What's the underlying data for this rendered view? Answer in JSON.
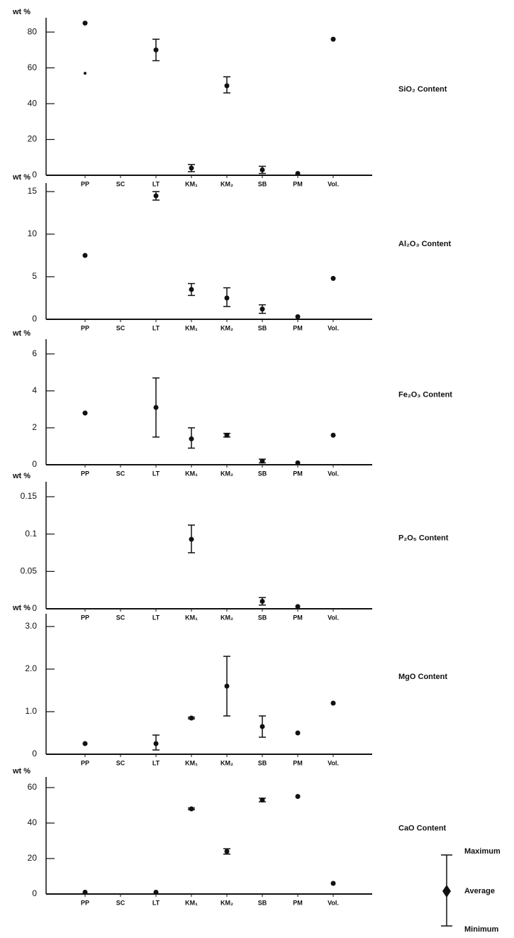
{
  "chart_data": [
    {
      "type": "range",
      "ylabel": "wt %",
      "title": "SiO₂ Content",
      "categories": [
        "PP",
        "SC",
        "LT",
        "KM₁",
        "KM₂",
        "SB",
        "PM",
        "Vol."
      ],
      "values": [
        85,
        null,
        70,
        4,
        50,
        3,
        1,
        76
      ],
      "min": [
        57,
        null,
        64,
        2,
        46,
        1,
        null,
        null
      ],
      "max": [
        null,
        null,
        76,
        6,
        55,
        5,
        null,
        null
      ],
      "ylim": [
        0,
        88
      ],
      "yticks": [
        0,
        20,
        40,
        60,
        80
      ],
      "color": "#111111"
    },
    {
      "type": "range",
      "ylabel": "wt %",
      "title": "Al₂O₃ Content",
      "categories": [
        "PP",
        "SC",
        "LT",
        "KM₁",
        "KM₂",
        "SB",
        "PM",
        "Vol."
      ],
      "values": [
        7.5,
        null,
        14.5,
        3.5,
        2.5,
        1.2,
        0.3,
        4.8
      ],
      "min": [
        null,
        null,
        14,
        2.8,
        1.5,
        0.7,
        null,
        null
      ],
      "max": [
        null,
        null,
        15,
        4.2,
        3.7,
        1.7,
        null,
        null
      ],
      "ylim": [
        0,
        16
      ],
      "yticks": [
        0,
        5,
        10,
        15
      ],
      "color": "#111111"
    },
    {
      "type": "range",
      "ylabel": "wt %",
      "title": "Fe₂O₃ Content",
      "categories": [
        "PP",
        "SC",
        "LT",
        "KM₁",
        "KM₂",
        "SB",
        "PM",
        "Vol."
      ],
      "values": [
        2.8,
        null,
        3.1,
        1.4,
        1.6,
        0.2,
        0.1,
        1.6
      ],
      "min": [
        null,
        null,
        1.5,
        0.9,
        1.5,
        0.1,
        null,
        null
      ],
      "max": [
        null,
        null,
        4.7,
        2.0,
        1.7,
        0.3,
        null,
        null
      ],
      "ylim": [
        0,
        6.8
      ],
      "yticks": [
        0,
        2,
        4,
        6
      ],
      "color": "#111111"
    },
    {
      "type": "range",
      "ylabel": "wt %",
      "title": "P₂O₅ Content",
      "categories": [
        "PP",
        "SC",
        "LT",
        "KM₁",
        "KM₂",
        "SB",
        "PM",
        "Vol."
      ],
      "values": [
        null,
        null,
        null,
        0.093,
        null,
        0.01,
        0.003,
        null
      ],
      "min": [
        null,
        null,
        null,
        0.075,
        null,
        0.005,
        null,
        null
      ],
      "max": [
        null,
        null,
        null,
        0.112,
        null,
        0.015,
        null,
        null
      ],
      "ylim": [
        0,
        0.17
      ],
      "yticks": [
        0,
        0.05,
        0.1,
        0.15
      ],
      "color": "#111111"
    },
    {
      "type": "range",
      "ylabel": "wt %",
      "title": "MgO Content",
      "categories": [
        "PP",
        "SC",
        "LT",
        "KM₁",
        "KM₂",
        "SB",
        "PM",
        "Vol."
      ],
      "values": [
        0.25,
        null,
        0.25,
        0.85,
        1.6,
        0.65,
        0.5,
        1.2
      ],
      "min": [
        null,
        null,
        0.1,
        0.83,
        0.9,
        0.4,
        null,
        null
      ],
      "max": [
        null,
        null,
        0.45,
        0.87,
        2.3,
        0.9,
        null,
        null
      ],
      "ylim": [
        0,
        3.3
      ],
      "yticks": [
        0,
        {
          "value": 1,
          "label": "1.0"
        },
        {
          "value": 2,
          "label": "2.0"
        },
        {
          "value": 3,
          "label": "3.0"
        }
      ],
      "color": "#111111"
    },
    {
      "type": "range",
      "ylabel": "wt %",
      "title": "CaO Content",
      "categories": [
        "PP",
        "SC",
        "LT",
        "KM₁",
        "KM₂",
        "SB",
        "PM",
        "Vol."
      ],
      "values": [
        1,
        null,
        1,
        48,
        24,
        53,
        55,
        6
      ],
      "min": [
        null,
        null,
        null,
        47.5,
        22.5,
        52,
        null,
        null
      ],
      "max": [
        null,
        null,
        null,
        48.5,
        25.5,
        54,
        null,
        null
      ],
      "ylim": [
        0,
        66
      ],
      "yticks": [
        0,
        20,
        40,
        60
      ],
      "color": "#111111"
    }
  ],
  "legend": {
    "max": "Maximum",
    "avg": "Average",
    "min": "Minimum"
  }
}
